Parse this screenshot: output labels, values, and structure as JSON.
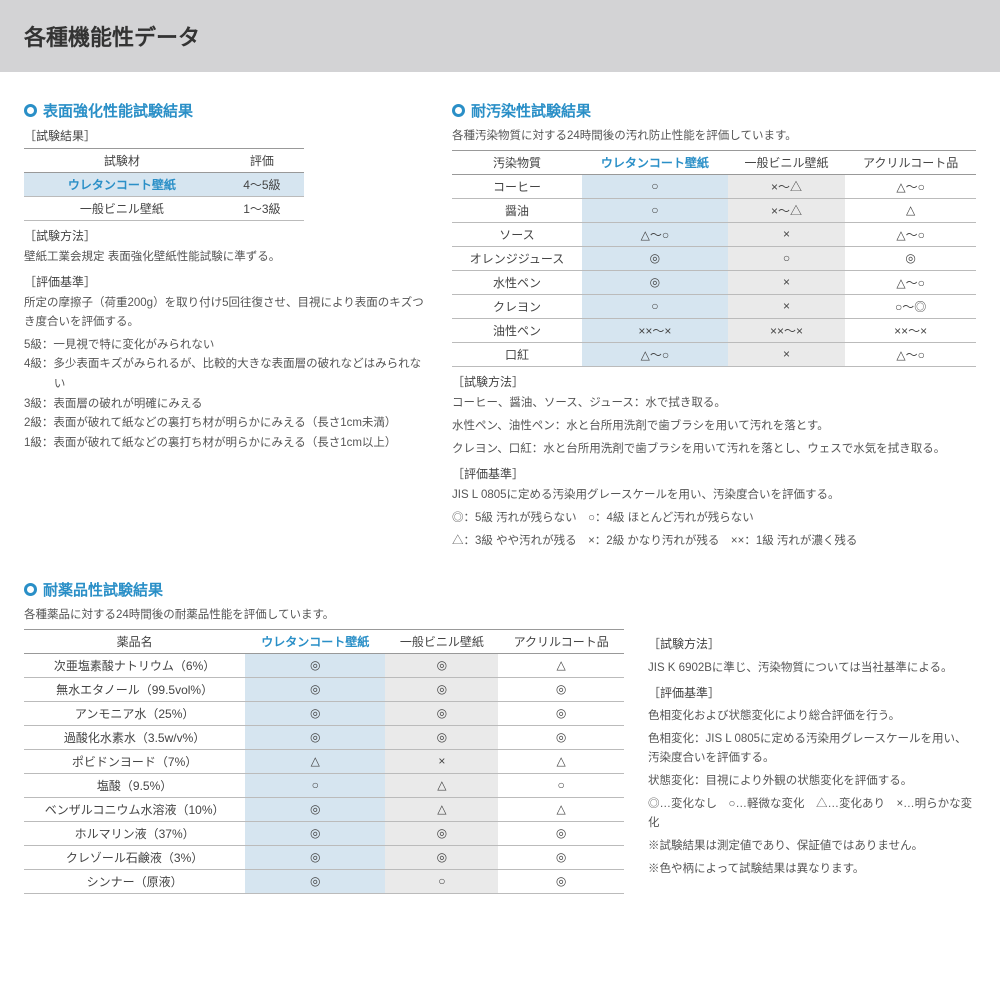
{
  "page_title": "各種機能性データ",
  "colors": {
    "accent": "#2a8fc7",
    "header_bg": "#d3d3d5",
    "hl_blue": "#d6e5f0",
    "hl_gray": "#eaeaea"
  },
  "section1": {
    "title": "表面強化性能試験結果",
    "result_label": "［試験結果］",
    "columns": [
      "試験材",
      "評価"
    ],
    "rows": [
      {
        "name": "ウレタンコート壁紙",
        "value": "4～5級",
        "accent": true
      },
      {
        "name": "一般ビニル壁紙",
        "value": "1～3級",
        "accent": false
      }
    ],
    "method_label": "［試験方法］",
    "method_text": "壁紙工業会規定 表面強化壁紙性能試験に準ずる。",
    "criteria_label": "［評価基準］",
    "criteria_text": "所定の摩擦子（荷重200g）を取り付け5回往復させ、目視により表面のキズつき度合いを評価する。",
    "grades": [
      "5級：一見視で特に変化がみられない",
      "4級：多少表面キズがみられるが、比較的大きな表面層の破れなどはみられない",
      "3級：表面層の破れが明確にみえる",
      "2級：表面が破れて紙などの裏打ち材が明らかにみえる（長さ1cm未満）",
      "1級：表面が破れて紙などの裏打ち材が明らかにみえる（長さ1cm以上）"
    ]
  },
  "section2": {
    "title": "耐汚染性試験結果",
    "intro": "各種汚染物質に対する24時間後の汚れ防止性能を評価しています。",
    "columns": [
      "汚染物質",
      "ウレタンコート壁紙",
      "一般ビニル壁紙",
      "アクリルコート品"
    ],
    "rows": [
      {
        "name": "コーヒー",
        "c1": "○",
        "c2": "×～△",
        "c3": "△～○"
      },
      {
        "name": "醤油",
        "c1": "○",
        "c2": "×～△",
        "c3": "△"
      },
      {
        "name": "ソース",
        "c1": "△～○",
        "c2": "×",
        "c3": "△～○"
      },
      {
        "name": "オレンジジュース",
        "c1": "◎",
        "c2": "○",
        "c3": "◎"
      },
      {
        "name": "水性ペン",
        "c1": "◎",
        "c2": "×",
        "c3": "△～○"
      },
      {
        "name": "クレヨン",
        "c1": "○",
        "c2": "×",
        "c3": "○～◎"
      },
      {
        "name": "油性ペン",
        "c1": "××～×",
        "c2": "××～×",
        "c3": "××～×"
      },
      {
        "name": "口紅",
        "c1": "△～○",
        "c2": "×",
        "c3": "△～○"
      }
    ],
    "method_label": "［試験方法］",
    "method_lines": [
      "コーヒー、醤油、ソース、ジュース：水で拭き取る。",
      "水性ペン、油性ペン：水と台所用洗剤で歯ブラシを用いて汚れを落とす。",
      "クレヨン、口紅：水と台所用洗剤で歯ブラシを用いて汚れを落とし、ウェスで水気を拭き取る。"
    ],
    "criteria_label": "［評価基準］",
    "criteria_text": "JIS L 0805に定める汚染用グレースケールを用い、汚染度合いを評価する。",
    "legend1": "◎：5級 汚れが残らない　○：4級 ほとんど汚れが残らない",
    "legend2": "△：3級 やや汚れが残る　×：2級 かなり汚れが残る　××：1級 汚れが濃く残る"
  },
  "section3": {
    "title": "耐薬品性試験結果",
    "intro": "各種薬品に対する24時間後の耐薬品性能を評価しています。",
    "columns": [
      "薬品名",
      "ウレタンコート壁紙",
      "一般ビニル壁紙",
      "アクリルコート品"
    ],
    "rows": [
      {
        "name": "次亜塩素酸ナトリウム（6%）",
        "c1": "◎",
        "c2": "◎",
        "c3": "△"
      },
      {
        "name": "無水エタノール（99.5vol%）",
        "c1": "◎",
        "c2": "◎",
        "c3": "◎"
      },
      {
        "name": "アンモニア水（25%）",
        "c1": "◎",
        "c2": "◎",
        "c3": "◎"
      },
      {
        "name": "過酸化水素水（3.5w/v%）",
        "c1": "◎",
        "c2": "◎",
        "c3": "◎"
      },
      {
        "name": "ポビドンヨード（7%）",
        "c1": "△",
        "c2": "×",
        "c3": "△"
      },
      {
        "name": "塩酸（9.5%）",
        "c1": "○",
        "c2": "△",
        "c3": "○"
      },
      {
        "name": "ベンザルコニウム水溶液（10%）",
        "c1": "◎",
        "c2": "△",
        "c3": "△"
      },
      {
        "name": "ホルマリン液（37%）",
        "c1": "◎",
        "c2": "◎",
        "c3": "◎"
      },
      {
        "name": "クレゾール石鹸液（3%）",
        "c1": "◎",
        "c2": "◎",
        "c3": "◎"
      },
      {
        "name": "シンナー（原液）",
        "c1": "◎",
        "c2": "○",
        "c3": "◎"
      }
    ],
    "side": {
      "method_label": "［試験方法］",
      "method_text": "JIS K 6902Bに準じ、汚染物質については当社基準による。",
      "criteria_label": "［評価基準］",
      "criteria_lines": [
        "色相変化および状態変化により総合評価を行う。",
        "色相変化：JIS L 0805に定める汚染用グレースケールを用い、汚染度合いを評価する。",
        "状態変化：目視により外観の状態変化を評価する。"
      ],
      "legend": "◎…変化なし　○…軽微な変化　△…変化あり　×…明らかな変化",
      "notes": [
        "※試験結果は測定値であり、保証値ではありません。",
        "※色や柄によって試験結果は異なります。"
      ]
    }
  }
}
